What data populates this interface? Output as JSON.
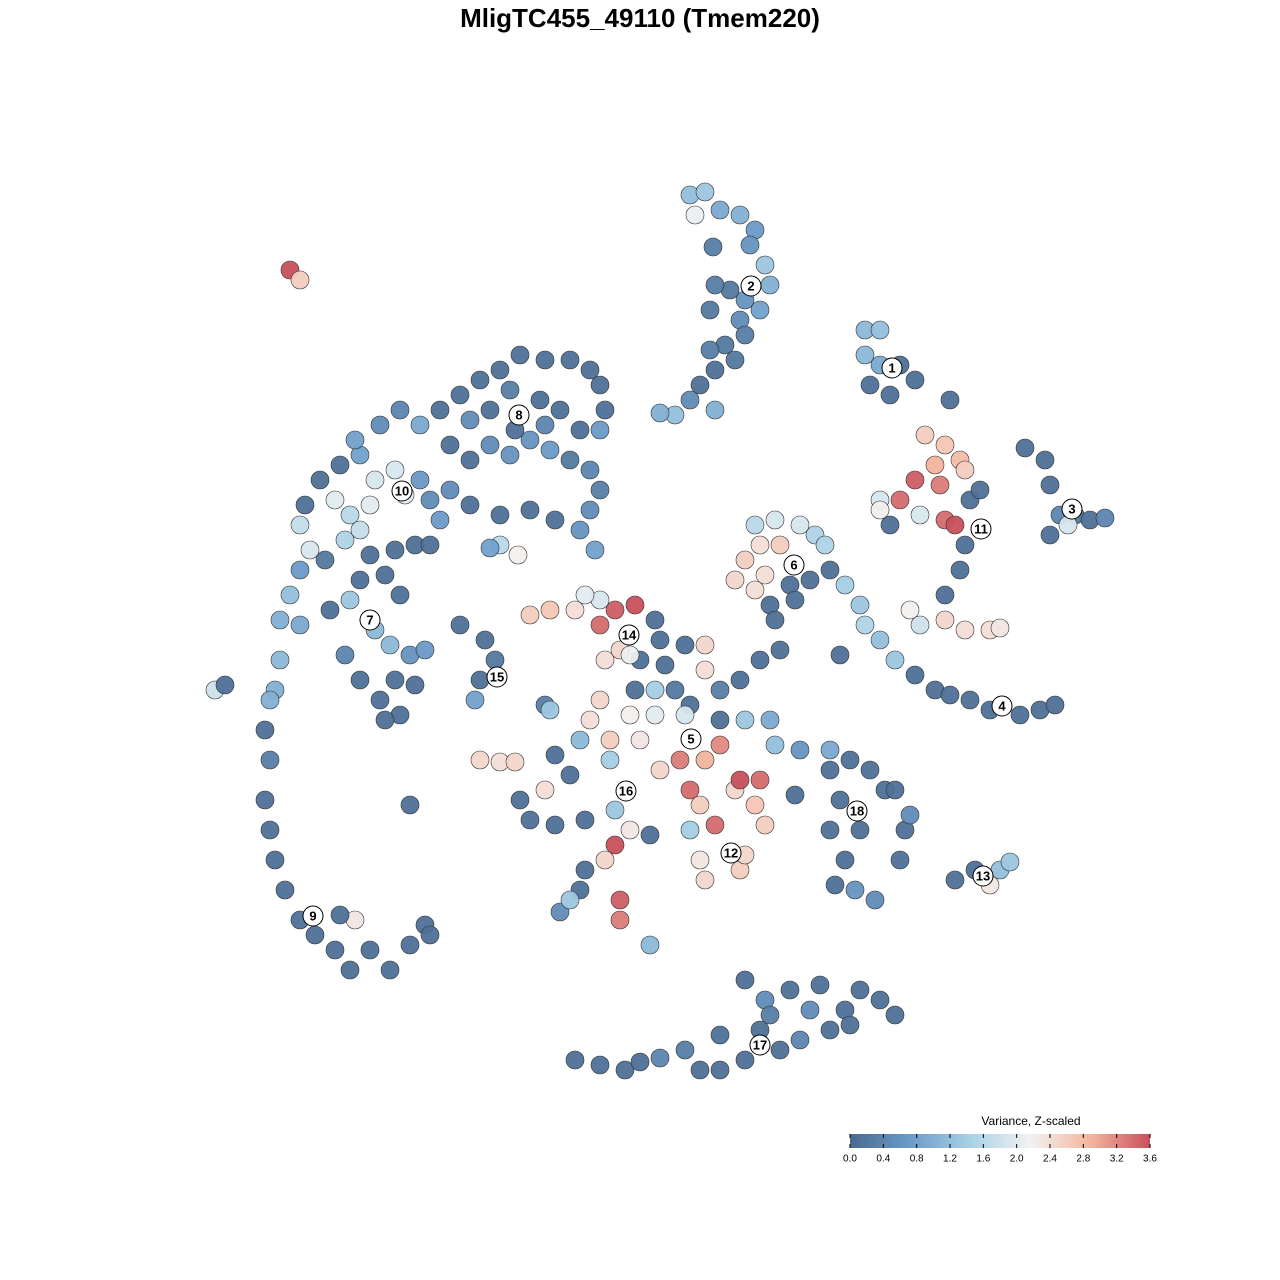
{
  "chart_data": {
    "type": "scatter",
    "title": "MligTC455_49110 (Tmem220)",
    "xlim": [
      200,
      1080
    ],
    "ylim": [
      1090,
      170
    ],
    "colormap": [
      "#4a6a8f",
      "#6a9bc9",
      "#a8d1e6",
      "#f2f2f2",
      "#f4b69e",
      "#c8505c"
    ],
    "colorbar": {
      "title": "Variance, Z-scaled",
      "lim": [
        0,
        3.6
      ],
      "ticks": [
        {
          "value": 0,
          "label": "0.0"
        },
        0.4,
        0.8,
        1.2,
        1.6,
        {
          "value": 2,
          "label": "2.0"
        },
        2.4,
        2.8,
        3.2,
        3.6
      ]
    },
    "series": [
      {
        "x": [
          690,
          705,
          695,
          720,
          740,
          755,
          750,
          765,
          770,
          745,
          730,
          715,
          710,
          740,
          745,
          725,
          710,
          715,
          735,
          700,
          690,
          715,
          675,
          660,
          713,
          760
        ],
        "y": [
          195,
          192,
          215,
          210,
          215,
          230,
          245,
          265,
          285,
          300,
          290,
          285,
          310,
          320,
          335,
          345,
          350,
          370,
          360,
          385,
          400,
          410,
          415,
          413,
          247,
          310
        ],
        "values": [
          1.2,
          1.3,
          2.1,
          0.9,
          1.0,
          0.7,
          0.6,
          1.3,
          1.0,
          0.6,
          0.2,
          0.3,
          0.2,
          0.5,
          0.3,
          0.2,
          0.3,
          0.1,
          0.2,
          0.1,
          0.5,
          1.0,
          1.2,
          1.0,
          0.3,
          0.8
        ]
      },
      {
        "x": [
          865,
          880,
          865,
          880,
          900,
          870,
          890,
          915,
          950
        ],
        "y": [
          330,
          330,
          355,
          365,
          365,
          385,
          395,
          380,
          400
        ],
        "values": [
          1.1,
          1.2,
          1.1,
          0.9,
          0.1,
          0.1,
          0.1,
          0.1,
          0.1
        ]
      },
      {
        "x": [
          925,
          945,
          960,
          935,
          965,
          915,
          940,
          880,
          900,
          920,
          945,
          955,
          970,
          980,
          965,
          960,
          945,
          910,
          920,
          945,
          965,
          990,
          1000,
          890,
          880
        ],
        "y": [
          435,
          445,
          460,
          465,
          470,
          480,
          485,
          500,
          500,
          515,
          520,
          525,
          500,
          490,
          545,
          570,
          595,
          610,
          625,
          620,
          630,
          630,
          628,
          525,
          510
        ],
        "values": [
          2.6,
          2.7,
          2.8,
          2.9,
          2.6,
          3.5,
          3.3,
          1.9,
          3.4,
          1.9,
          3.4,
          3.6,
          0.1,
          0.1,
          0.1,
          0.1,
          0.1,
          2.2,
          1.8,
          2.5,
          2.4,
          2.4,
          2.3,
          0.1,
          2.2
        ]
      },
      {
        "x": [
          1025,
          1045,
          1050,
          1060,
          1075,
          1090,
          1105,
          1050,
          1068
        ],
        "y": [
          448,
          460,
          485,
          515,
          515,
          520,
          518,
          535,
          525
        ],
        "values": [
          0.1,
          0.1,
          0.1,
          0.4,
          0.2,
          0.1,
          0.4,
          0.1,
          1.9
        ]
      },
      {
        "x": [
          755,
          775,
          800,
          815,
          825,
          760,
          780,
          745,
          765,
          735,
          755,
          790,
          810,
          830,
          845,
          770,
          775,
          795
        ],
        "y": [
          525,
          520,
          525,
          535,
          545,
          545,
          545,
          560,
          575,
          580,
          590,
          585,
          580,
          570,
          585,
          605,
          620,
          600
        ],
        "values": [
          1.6,
          1.9,
          1.9,
          1.5,
          1.5,
          2.4,
          2.6,
          2.6,
          2.4,
          2.5,
          2.4,
          0.1,
          0.1,
          0.1,
          1.4,
          0.1,
          0.1,
          0.1
        ]
      },
      {
        "x": [
          860,
          865,
          880,
          895,
          915,
          935,
          950,
          970,
          990,
          1020,
          1040,
          1055,
          840
        ],
        "y": [
          605,
          625,
          640,
          660,
          675,
          690,
          695,
          700,
          710,
          715,
          710,
          705,
          655
        ],
        "values": [
          1.3,
          1.5,
          1.2,
          1.3,
          0.1,
          0.1,
          0.1,
          0.1,
          0.1,
          0.1,
          0.1,
          0.1,
          0.1
        ]
      },
      {
        "x": [
          660,
          685,
          705,
          705,
          640,
          665,
          635,
          655,
          675,
          690,
          720,
          740,
          760,
          780,
          600,
          590,
          630,
          655,
          685,
          610,
          640,
          720,
          745,
          770,
          775,
          720,
          705,
          680,
          660,
          610,
          580,
          555,
          570,
          545,
          520,
          530,
          555,
          585,
          615,
          630,
          615,
          605,
          585,
          580,
          560,
          570,
          620,
          620,
          650,
          650,
          690,
          700,
          715,
          735,
          740,
          760,
          755,
          765,
          705,
          740,
          745,
          700,
          690,
          800,
          830,
          795,
          480,
          500,
          515,
          545,
          550,
          655
        ],
        "y": [
          640,
          645,
          645,
          670,
          660,
          665,
          690,
          690,
          690,
          705,
          690,
          680,
          660,
          650,
          700,
          720,
          715,
          715,
          715,
          740,
          740,
          720,
          720,
          720,
          745,
          745,
          760,
          760,
          770,
          760,
          740,
          755,
          775,
          790,
          800,
          820,
          825,
          820,
          810,
          830,
          845,
          860,
          870,
          890,
          912,
          900,
          900,
          920,
          945,
          835,
          790,
          805,
          825,
          790,
          780,
          780,
          805,
          825,
          880,
          870,
          855,
          860,
          830,
          750,
          750,
          795,
          760,
          762,
          762,
          705,
          710,
          620
        ],
        "values": [
          0.1,
          0.1,
          2.5,
          2.4,
          0.1,
          0.1,
          0.1,
          1.4,
          0.2,
          0.1,
          0.3,
          0.1,
          0.1,
          0.1,
          2.5,
          2.4,
          2.2,
          2.0,
          1.9,
          2.6,
          2.3,
          0.1,
          1.3,
          0.9,
          1.2,
          3.2,
          2.9,
          3.3,
          2.5,
          1.4,
          1.1,
          0.1,
          0.1,
          2.4,
          0.1,
          0.1,
          0.1,
          0.1,
          1.3,
          2.3,
          3.6,
          2.5,
          0.1,
          0.1,
          0.5,
          1.3,
          3.5,
          3.3,
          1.1,
          0.1,
          3.4,
          2.6,
          3.4,
          2.5,
          3.6,
          3.4,
          2.7,
          2.6,
          2.5,
          2.6,
          2.5,
          2.3,
          1.4,
          0.6,
          0.9,
          0.1,
          2.5,
          2.4,
          2.5,
          0.3,
          1.3,
          0.1
        ]
      },
      {
        "x": [
          530,
          550,
          575,
          600,
          615,
          635,
          600,
          620,
          605,
          630,
          585,
          460,
          485,
          495,
          480,
          475,
          500,
          518,
          490
        ],
        "y": [
          615,
          610,
          610,
          600,
          610,
          605,
          625,
          650,
          660,
          655,
          595,
          625,
          640,
          660,
          680,
          700,
          545,
          555,
          548
        ],
        "values": [
          2.6,
          2.7,
          2.4,
          1.9,
          3.5,
          3.6,
          3.4,
          2.5,
          2.4,
          2.1,
          2.0,
          0.1,
          0.1,
          0.2,
          0.1,
          0.8,
          1.6,
          2.2,
          0.8
        ]
      },
      {
        "x": [
          830,
          850,
          870,
          885,
          840,
          860,
          830,
          845,
          835,
          855,
          875,
          905,
          910,
          900,
          895,
          955,
          975,
          990,
          1000,
          1010
        ],
        "y": [
          770,
          760,
          770,
          790,
          800,
          830,
          830,
          860,
          885,
          890,
          900,
          830,
          815,
          860,
          790,
          880,
          870,
          885,
          870,
          862
        ],
        "values": [
          0.1,
          0.1,
          0.1,
          0.1,
          0.1,
          0.1,
          0.1,
          0.1,
          0.1,
          0.6,
          0.5,
          0.1,
          0.5,
          0.1,
          0.1,
          0.1,
          0.1,
          2.3,
          1.2,
          1.3
        ]
      },
      {
        "x": [
          575,
          600,
          625,
          640,
          660,
          685,
          700,
          720,
          720,
          745,
          760,
          780,
          745,
          765,
          790,
          810,
          800,
          830,
          845,
          860,
          880,
          895,
          820,
          770,
          850
        ],
        "y": [
          1060,
          1065,
          1070,
          1062,
          1058,
          1050,
          1070,
          1070,
          1035,
          1060,
          1030,
          1050,
          980,
          1000,
          990,
          1010,
          1040,
          1030,
          1010,
          990,
          1000,
          1015,
          985,
          1015,
          1025
        ],
        "values": [
          0.1,
          0.1,
          0.1,
          0.1,
          0.4,
          0.3,
          0.1,
          0.1,
          0.1,
          0.1,
          0.1,
          0.1,
          0.1,
          0.5,
          0.1,
          0.5,
          0.4,
          0.1,
          0.1,
          0.1,
          0.1,
          0.1,
          0.1,
          0.3,
          0.1
        ]
      },
      {
        "x": [
          280,
          275,
          265,
          270,
          265,
          270,
          275,
          285,
          300,
          315,
          335,
          350,
          370,
          390,
          410,
          425,
          430,
          355,
          340,
          270,
          410,
          290,
          300,
          215,
          225
        ],
        "y": [
          660,
          690,
          730,
          760,
          800,
          830,
          860,
          890,
          920,
          935,
          950,
          970,
          950,
          970,
          945,
          925,
          935,
          920,
          915,
          700,
          805,
          270,
          280,
          690,
          685
        ],
        "values": [
          1.1,
          1.0,
          0.1,
          0.3,
          0.1,
          0.1,
          0.1,
          0.1,
          0.1,
          0.1,
          0.1,
          0.1,
          0.1,
          0.1,
          0.1,
          0.1,
          0.1,
          2.3,
          0.1,
          1.0,
          0.1,
          3.6,
          2.6,
          1.8,
          0.1
        ]
      },
      {
        "x": [
          305,
          300,
          310,
          300,
          290,
          280,
          300,
          330,
          350,
          360,
          385,
          400,
          375,
          390,
          410,
          425,
          395,
          380,
          400,
          360,
          345,
          415,
          385,
          325,
          345,
          370,
          395,
          415,
          430,
          320,
          340,
          360,
          375,
          395,
          405,
          420,
          430,
          370,
          350,
          335,
          360,
          355,
          380,
          400,
          420,
          440,
          460,
          480,
          500,
          520,
          545,
          570,
          590,
          600,
          605,
          600,
          580,
          560,
          540,
          510,
          490,
          470,
          450,
          470,
          490,
          510,
          530,
          550,
          570,
          590,
          600,
          590,
          580,
          595,
          555,
          530,
          500,
          470,
          450,
          440,
          515,
          545
        ],
        "y": [
          505,
          525,
          550,
          570,
          595,
          620,
          625,
          610,
          600,
          580,
          575,
          595,
          630,
          645,
          655,
          650,
          680,
          700,
          715,
          680,
          655,
          685,
          720,
          560,
          540,
          555,
          550,
          545,
          545,
          480,
          465,
          455,
          480,
          470,
          495,
          480,
          500,
          505,
          515,
          500,
          530,
          440,
          425,
          410,
          425,
          410,
          395,
          380,
          370,
          355,
          360,
          360,
          370,
          385,
          410,
          430,
          430,
          410,
          400,
          390,
          410,
          420,
          445,
          460,
          445,
          455,
          440,
          450,
          460,
          470,
          490,
          510,
          530,
          550,
          520,
          510,
          515,
          505,
          490,
          520,
          430,
          425
        ],
        "values": [
          0.1,
          1.7,
          1.9,
          0.7,
          1.2,
          1.0,
          0.9,
          0.1,
          1.3,
          0.1,
          0.1,
          0.1,
          1.1,
          1.1,
          0.6,
          0.7,
          0.1,
          0.1,
          0.1,
          0.1,
          0.4,
          0.1,
          0.1,
          0.2,
          1.5,
          0.1,
          0.1,
          0.1,
          0.1,
          0.1,
          0.1,
          0.8,
          1.9,
          1.9,
          2.0,
          0.7,
          0.5,
          2.0,
          1.6,
          2.0,
          1.7,
          0.8,
          0.5,
          0.4,
          0.9,
          0.1,
          0.1,
          0.1,
          0.1,
          0.1,
          0.1,
          0.1,
          0.1,
          0.1,
          0.1,
          0.7,
          0.1,
          0.1,
          0.1,
          0.3,
          0.1,
          0.5,
          0.1,
          0.1,
          0.5,
          0.6,
          0.6,
          0.7,
          0.2,
          0.4,
          0.3,
          0.5,
          0.6,
          0.8,
          0.1,
          0.1,
          0.1,
          0.1,
          0.5,
          0.7,
          0.1,
          0.4
        ]
      }
    ],
    "clusters": [
      {
        "label": "1",
        "x": 892,
        "y": 368
      },
      {
        "label": "2",
        "x": 751,
        "y": 286
      },
      {
        "label": "3",
        "x": 1072,
        "y": 509
      },
      {
        "label": "4",
        "x": 1002,
        "y": 706
      },
      {
        "label": "5",
        "x": 691,
        "y": 739
      },
      {
        "label": "6",
        "x": 794,
        "y": 565
      },
      {
        "label": "7",
        "x": 370,
        "y": 620
      },
      {
        "label": "8",
        "x": 519,
        "y": 415
      },
      {
        "label": "9",
        "x": 313,
        "y": 916
      },
      {
        "label": "10",
        "x": 402,
        "y": 491
      },
      {
        "label": "11",
        "x": 981,
        "y": 529
      },
      {
        "label": "12",
        "x": 731,
        "y": 853
      },
      {
        "label": "13",
        "x": 983,
        "y": 876
      },
      {
        "label": "14",
        "x": 629,
        "y": 635
      },
      {
        "label": "15",
        "x": 497,
        "y": 677
      },
      {
        "label": "16",
        "x": 626,
        "y": 791
      },
      {
        "label": "17",
        "x": 760,
        "y": 1045
      },
      {
        "label": "18",
        "x": 857,
        "y": 811
      }
    ]
  }
}
